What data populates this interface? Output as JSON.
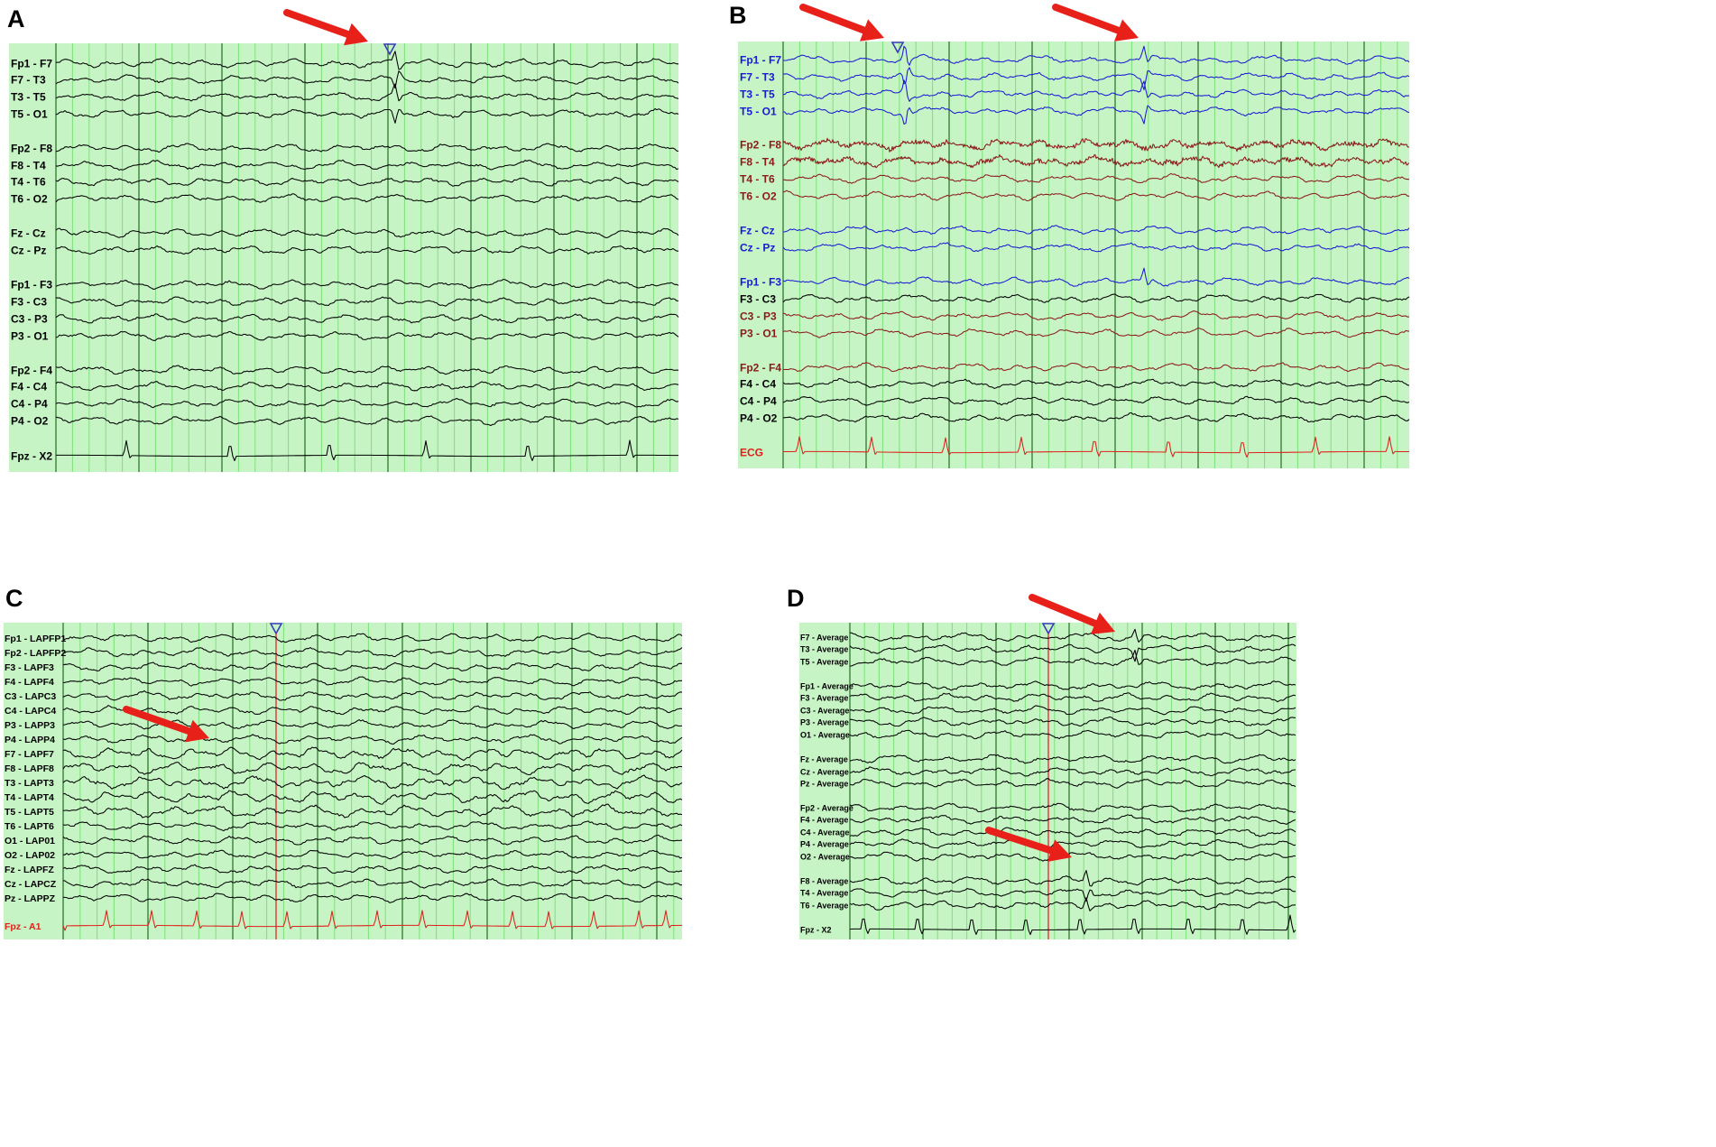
{
  "colors": {
    "black": "#000000",
    "blue": "#1a1ad6",
    "maroon": "#8b1a1a",
    "red": "#e0201a",
    "grid_bg": "#c6f4c4",
    "arrow": "#e8201a"
  },
  "panels": [
    {
      "letter": "A",
      "channels": [
        {
          "label": "Fp1 - F7",
          "color": "black"
        },
        {
          "label": "F7 - T3",
          "color": "black"
        },
        {
          "label": "T3 - T5",
          "color": "black"
        },
        {
          "label": "T5 - O1",
          "color": "black"
        },
        {
          "label": "Fp2 - F8",
          "color": "black"
        },
        {
          "label": "F8 - T4",
          "color": "black"
        },
        {
          "label": "T4 - T6",
          "color": "black"
        },
        {
          "label": "T6 - O2",
          "color": "black"
        },
        {
          "label": "Fz - Cz",
          "color": "black"
        },
        {
          "label": "Cz - Pz",
          "color": "black"
        },
        {
          "label": "Fp1 - F3",
          "color": "black"
        },
        {
          "label": "F3 - C3",
          "color": "black"
        },
        {
          "label": "C3 - P3",
          "color": "black"
        },
        {
          "label": "P3 - O1",
          "color": "black"
        },
        {
          "label": "Fp2 - F4",
          "color": "black"
        },
        {
          "label": "F4 - C4",
          "color": "black"
        },
        {
          "label": "C4 - P4",
          "color": "black"
        },
        {
          "label": "P4 - O2",
          "color": "black"
        },
        {
          "label": "Fpz - X2",
          "color": "black",
          "ecg": true
        }
      ]
    },
    {
      "letter": "B",
      "channels": [
        {
          "label": "Fp1 - F7",
          "color": "blue"
        },
        {
          "label": "F7 - T3",
          "color": "blue"
        },
        {
          "label": "T3 - T5",
          "color": "blue"
        },
        {
          "label": "T5 - O1",
          "color": "blue"
        },
        {
          "label": "Fp2 - F8",
          "color": "maroon",
          "noisy": true
        },
        {
          "label": "F8 - T4",
          "color": "maroon",
          "noisy": true
        },
        {
          "label": "T4 - T6",
          "color": "maroon"
        },
        {
          "label": "T6 - O2",
          "color": "maroon"
        },
        {
          "label": "Fz - Cz",
          "color": "blue"
        },
        {
          "label": "Cz - Pz",
          "color": "blue"
        },
        {
          "label": "Fp1 - F3",
          "color": "blue"
        },
        {
          "label": "F3 - C3",
          "color": "black"
        },
        {
          "label": "C3 - P3",
          "color": "maroon"
        },
        {
          "label": "P3 - O1",
          "color": "maroon"
        },
        {
          "label": "Fp2 - F4",
          "color": "maroon"
        },
        {
          "label": "F4 - C4",
          "color": "black"
        },
        {
          "label": "C4 - P4",
          "color": "black"
        },
        {
          "label": "P4 - O2",
          "color": "black"
        },
        {
          "label": "ECG",
          "color": "red",
          "ecg": true
        }
      ]
    },
    {
      "letter": "C",
      "channels": [
        {
          "label": "Fp1 - LAPFP1",
          "color": "black"
        },
        {
          "label": "Fp2 - LAPFP2",
          "color": "black"
        },
        {
          "label": "F3 - LAPF3",
          "color": "black"
        },
        {
          "label": "F4 - LAPF4",
          "color": "black"
        },
        {
          "label": "C3 - LAPC3",
          "color": "black"
        },
        {
          "label": "C4 - LAPC4",
          "color": "black"
        },
        {
          "label": "P3 - LAPP3",
          "color": "black"
        },
        {
          "label": "P4 - LAPP4",
          "color": "black"
        },
        {
          "label": "F7 - LAPF7",
          "color": "black"
        },
        {
          "label": "F8 - LAPF8",
          "color": "black"
        },
        {
          "label": "T3 - LAPT3",
          "color": "black"
        },
        {
          "label": "T4 - LAPT4",
          "color": "black"
        },
        {
          "label": "T5 - LAPT5",
          "color": "black"
        },
        {
          "label": "T6 - LAPT6",
          "color": "black"
        },
        {
          "label": "O1 - LAP01",
          "color": "black"
        },
        {
          "label": "O2 - LAP02",
          "color": "black"
        },
        {
          "label": "Fz - LAPFZ",
          "color": "black"
        },
        {
          "label": "Cz - LAPCZ",
          "color": "black"
        },
        {
          "label": "Pz - LAPPZ",
          "color": "black"
        },
        {
          "label": "Fpz - A1",
          "color": "red",
          "ecg": true
        }
      ]
    },
    {
      "letter": "D",
      "channels": [
        {
          "label": "F7 - Average",
          "color": "black"
        },
        {
          "label": "T3 - Average",
          "color": "black"
        },
        {
          "label": "T5 - Average",
          "color": "black"
        },
        {
          "label": "Fp1 - Average",
          "color": "black"
        },
        {
          "label": "F3 - Average",
          "color": "black"
        },
        {
          "label": "C3 - Average",
          "color": "black"
        },
        {
          "label": "P3 - Average",
          "color": "black"
        },
        {
          "label": "O1 - Average",
          "color": "black"
        },
        {
          "label": "Fz - Average",
          "color": "black"
        },
        {
          "label": "Cz - Average",
          "color": "black"
        },
        {
          "label": "Pz - Average",
          "color": "black"
        },
        {
          "label": "Fp2 - Average",
          "color": "black"
        },
        {
          "label": "F4 - Average",
          "color": "black"
        },
        {
          "label": "C4 - Average",
          "color": "black"
        },
        {
          "label": "P4 - Average",
          "color": "black"
        },
        {
          "label": "O2 - Average",
          "color": "black"
        },
        {
          "label": "F8 - Average",
          "color": "black"
        },
        {
          "label": "T4 - Average",
          "color": "black"
        },
        {
          "label": "T6 - Average",
          "color": "black"
        },
        {
          "label": "Fpz - X2",
          "color": "black",
          "ecg": true
        }
      ]
    }
  ]
}
